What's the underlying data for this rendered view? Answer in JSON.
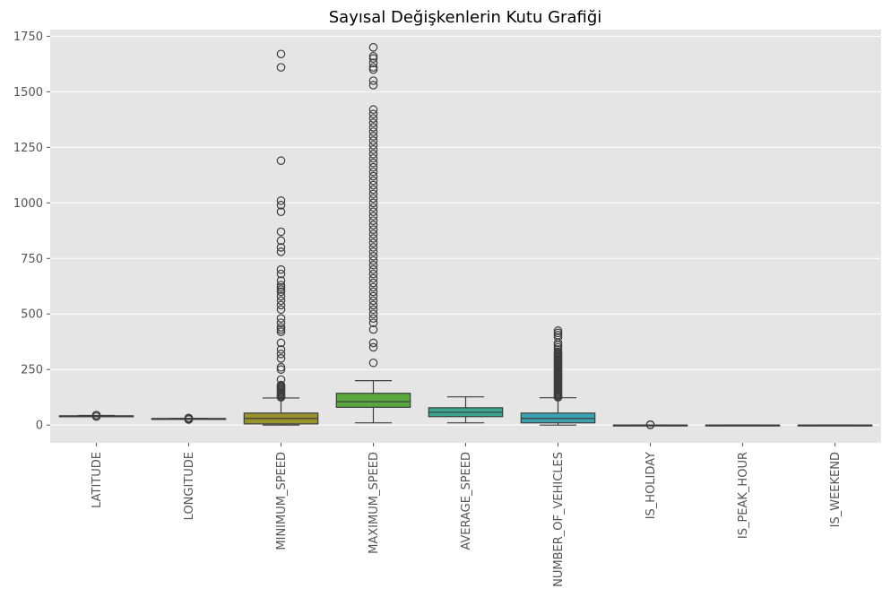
{
  "chart_data": {
    "type": "box",
    "title": "Sayısal Değişkenlerin Kutu Grafiği",
    "xlabel": "",
    "ylabel": "",
    "ylim": [
      -80,
      1780
    ],
    "yticks": [
      0,
      250,
      500,
      750,
      1000,
      1250,
      1500,
      1750
    ],
    "grid": true,
    "categories": [
      "LATITUDE",
      "LONGITUDE",
      "MINIMUM_SPEED",
      "MAXIMUM_SPEED",
      "AVERAGE_SPEED",
      "NUMBER_OF_VEHICLES",
      "IS_HOLIDAY",
      "IS_PEAK_HOUR",
      "IS_WEEKEND"
    ],
    "boxes": [
      {
        "color": "#d26c5f",
        "whisker_low": 40,
        "q1": 41,
        "median": 41,
        "q3": 41.5,
        "whisker_high": 43,
        "outliers": [
          38,
          44,
          45
        ]
      },
      {
        "color": "#c47d2a",
        "whisker_low": 28,
        "q1": 28.8,
        "median": 29,
        "q3": 29.5,
        "whisker_high": 30,
        "outliers": [
          25,
          26,
          27,
          31,
          32
        ]
      },
      {
        "color": "#97912e",
        "whisker_low": 0,
        "q1": 5,
        "median": 30,
        "q3": 54,
        "whisker_high": 122,
        "outliers": [
          125,
          130,
          135,
          140,
          145,
          150,
          155,
          160,
          165,
          170,
          175,
          180,
          205,
          250,
          260,
          300,
          320,
          340,
          370,
          420,
          430,
          440,
          460,
          480,
          520,
          540,
          560,
          580,
          600,
          610,
          620,
          630,
          650,
          680,
          700,
          780,
          800,
          830,
          870,
          960,
          990,
          1010,
          1190,
          1610,
          1670
        ]
      },
      {
        "color": "#58a83e",
        "whisker_low": 10,
        "q1": 80,
        "median": 105,
        "q3": 143,
        "whisker_high": 200,
        "outliers": [
          280,
          350,
          370,
          430,
          460,
          480,
          500,
          520,
          540,
          560,
          580,
          600,
          620,
          640,
          660,
          680,
          700,
          720,
          740,
          760,
          780,
          800,
          820,
          840,
          860,
          880,
          900,
          920,
          940,
          960,
          980,
          1000,
          1020,
          1040,
          1060,
          1080,
          1100,
          1120,
          1140,
          1160,
          1180,
          1200,
          1220,
          1240,
          1260,
          1280,
          1300,
          1320,
          1340,
          1360,
          1380,
          1400,
          1420,
          1530,
          1550,
          1600,
          1610,
          1630,
          1650,
          1660,
          1700
        ]
      },
      {
        "color": "#3aa48c",
        "whisker_low": 10,
        "q1": 38,
        "median": 58,
        "q3": 78,
        "whisker_high": 127,
        "outliers": []
      },
      {
        "color": "#3aa2b0",
        "whisker_low": 0,
        "q1": 10,
        "median": 30,
        "q3": 54,
        "whisker_high": 123,
        "outliers": [
          125,
          130,
          135,
          140,
          145,
          150,
          155,
          160,
          165,
          170,
          175,
          180,
          185,
          190,
          195,
          200,
          205,
          210,
          215,
          220,
          225,
          230,
          235,
          240,
          245,
          250,
          255,
          260,
          265,
          270,
          275,
          280,
          285,
          290,
          295,
          300,
          305,
          310,
          315,
          320,
          325,
          330,
          340,
          350,
          360,
          370,
          395,
          405,
          415,
          425
        ]
      },
      {
        "color": "#6f8fd6",
        "whisker_low": 0,
        "q1": 0,
        "median": 0,
        "q3": 0,
        "whisker_high": 0,
        "outliers": [
          1,
          2
        ]
      },
      {
        "color": "#b58ad8",
        "whisker_low": 0,
        "q1": 0,
        "median": 0,
        "q3": 0,
        "whisker_high": 0,
        "outliers": []
      },
      {
        "color": "#d67fc0",
        "whisker_low": 0,
        "q1": 0,
        "median": 0,
        "q3": 0,
        "whisker_high": 0,
        "outliers": []
      }
    ]
  }
}
